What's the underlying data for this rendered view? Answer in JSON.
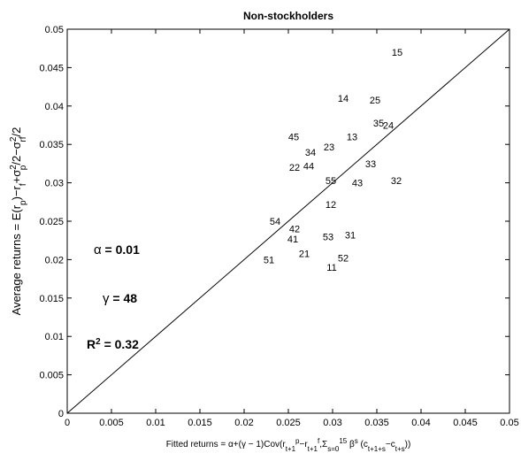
{
  "chart_data": {
    "type": "scatter",
    "title": "Non-stockholders",
    "xlabel": {
      "lead": "Fitted returns = α+(γ − 1)Cov(r",
      "sub1": "t+1",
      "sup1": "p",
      "mid1": "−r",
      "sub2": "t+1",
      "sup2": "f",
      "mid2": ",Σ",
      "sub3": "s=0",
      "sup3": "15",
      "mid3": " β",
      "sup4": "s",
      "mid4": " (c",
      "sub5": "t+1+s",
      "mid5": "−c",
      "sub6": "t+s",
      "tail": "))"
    },
    "ylabel": {
      "lead": "Average returns = E(r",
      "sub1": "p",
      "mid1": ")−r",
      "sub2": "f",
      "mid2": "+σ",
      "sup3": "2",
      "sub3": "p",
      "mid3": "/2−σ",
      "sup4": "2",
      "sub4": "rf",
      "tail": "/2"
    },
    "xlim": [
      0,
      0.05
    ],
    "ylim": [
      0,
      0.05
    ],
    "xticks": [
      "0",
      "0.005",
      "0.01",
      "0.015",
      "0.02",
      "0.025",
      "0.03",
      "0.035",
      "0.04",
      "0.045",
      "0.05"
    ],
    "yticks": [
      "0",
      "0.005",
      "0.01",
      "0.015",
      "0.02",
      "0.025",
      "0.03",
      "0.035",
      "0.04",
      "0.045",
      "0.05"
    ],
    "reference_line": {
      "x": [
        0,
        0.05
      ],
      "y": [
        0,
        0.05
      ]
    },
    "points": [
      {
        "label": "15",
        "x": 0.0373,
        "y": 0.047
      },
      {
        "label": "14",
        "x": 0.0312,
        "y": 0.041
      },
      {
        "label": "25",
        "x": 0.0348,
        "y": 0.0408
      },
      {
        "label": "35",
        "x": 0.0352,
        "y": 0.0378
      },
      {
        "label": "24",
        "x": 0.0363,
        "y": 0.0375
      },
      {
        "label": "45",
        "x": 0.0256,
        "y": 0.036
      },
      {
        "label": "13",
        "x": 0.0322,
        "y": 0.036
      },
      {
        "label": "23",
        "x": 0.0296,
        "y": 0.0347
      },
      {
        "label": "34",
        "x": 0.0275,
        "y": 0.034
      },
      {
        "label": "44",
        "x": 0.0273,
        "y": 0.0322
      },
      {
        "label": "22",
        "x": 0.0257,
        "y": 0.032
      },
      {
        "label": "33",
        "x": 0.0343,
        "y": 0.0325
      },
      {
        "label": "55",
        "x": 0.0298,
        "y": 0.0303
      },
      {
        "label": "43",
        "x": 0.0328,
        "y": 0.03
      },
      {
        "label": "32",
        "x": 0.0372,
        "y": 0.0303
      },
      {
        "label": "12",
        "x": 0.0298,
        "y": 0.0272
      },
      {
        "label": "54",
        "x": 0.0235,
        "y": 0.025
      },
      {
        "label": "42",
        "x": 0.0257,
        "y": 0.024
      },
      {
        "label": "41",
        "x": 0.0255,
        "y": 0.0227
      },
      {
        "label": "53",
        "x": 0.0295,
        "y": 0.023
      },
      {
        "label": "31",
        "x": 0.032,
        "y": 0.0232
      },
      {
        "label": "21",
        "x": 0.0268,
        "y": 0.0208
      },
      {
        "label": "52",
        "x": 0.0312,
        "y": 0.0202
      },
      {
        "label": "51",
        "x": 0.0228,
        "y": 0.02
      },
      {
        "label": "11",
        "x": 0.0299,
        "y": 0.019
      }
    ],
    "annotations": [
      {
        "sym": "α",
        "val": " = 0.01",
        "x": 0.003,
        "y": 0.0213
      },
      {
        "sym": "γ",
        "val": " = 48",
        "x": 0.004,
        "y": 0.015
      },
      {
        "sym": "R",
        "sup": "2",
        "val": " = 0.32",
        "x": 0.0022,
        "y": 0.009
      }
    ],
    "grid": false,
    "legend": "none"
  }
}
